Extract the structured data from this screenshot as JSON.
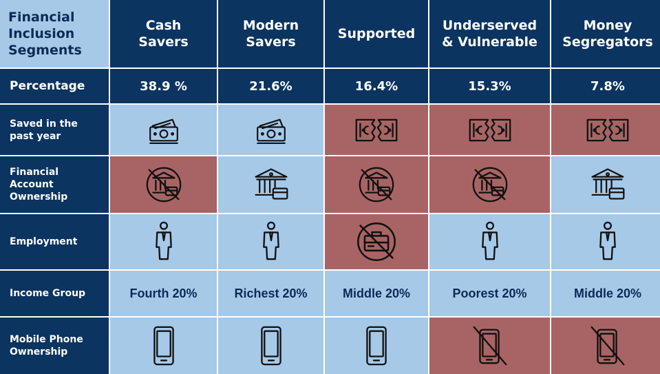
{
  "table": {
    "corner_label": "Financial\nInclusion\nSegments",
    "segments": [
      "Cash\nSavers",
      "Modern\nSavers",
      "Supported",
      "Underserved\n& Vulnerable",
      "Money\nSegregators"
    ],
    "rows": {
      "percentage": {
        "label": "Percentage",
        "values": [
          "38.9 %",
          "21.6%",
          "16.4%",
          "15.3%",
          "7.8%"
        ]
      },
      "saved": {
        "label": "Saved in the\npast year",
        "states": [
          "yes",
          "yes",
          "no",
          "no",
          "no"
        ]
      },
      "account": {
        "label": "Financial\nAccount\nOwnership",
        "states": [
          "no",
          "yes",
          "no",
          "no",
          "yes"
        ]
      },
      "employment": {
        "label": "Employment",
        "states": [
          "yes",
          "yes",
          "no",
          "yes",
          "yes"
        ]
      },
      "income": {
        "label": "Income Group",
        "values": [
          "Fourth 20%",
          "Richest 20%",
          "Middle 20%",
          "Poorest 20%",
          "Middle 20%"
        ]
      },
      "phone": {
        "label": "Mobile Phone\nOwnership",
        "states": [
          "yes",
          "yes",
          "yes",
          "no",
          "no"
        ]
      }
    },
    "icons": {
      "saved_yes": "money-stack-icon",
      "saved_no": "torn-banknote-icon",
      "account_yes": "bank-card-icon",
      "account_no": "no-bank-icon",
      "employment_yes": "person-icon",
      "employment_no": "no-briefcase-icon",
      "phone_yes": "smartphone-icon",
      "phone_no": "no-smartphone-icon"
    },
    "colors": {
      "header_navy": "#0b3460",
      "positive_blue": "#a6c9e8",
      "negative_red": "#a86464"
    }
  }
}
